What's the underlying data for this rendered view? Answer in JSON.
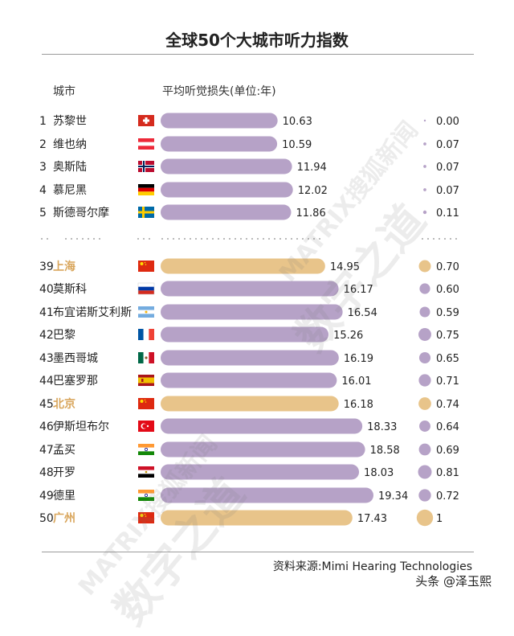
{
  "title": "全球50个大城市听力指数",
  "headers": {
    "city": "城市",
    "metric": "平均听觉损失(单位:年)"
  },
  "source": "资料来源:Mimi Hearing Technologies",
  "credit": "头条 @泽玉熙",
  "watermarks": [
    "MATRIX搜狐新闻",
    "数字之道",
    "MATRIX搜狐新闻",
    "数字之道"
  ],
  "colors": {
    "normal": "#b6a2c7",
    "highlight_city": "#e8c48a",
    "highlight_text": "#d9a65c"
  },
  "chart_data": {
    "type": "bar",
    "title": "全球50个大城市听力指数",
    "xlabel": "平均听觉损失(单位:年)",
    "rows": [
      {
        "rank": "1",
        "city": "苏黎世",
        "flag": "switzerland",
        "hearing_loss": 10.63,
        "index": 0.0,
        "index_label": "0.00",
        "highlight": false
      },
      {
        "rank": "2",
        "city": "维也纳",
        "flag": "austria",
        "hearing_loss": 10.59,
        "index": 0.07,
        "index_label": "0.07",
        "highlight": false
      },
      {
        "rank": "3",
        "city": "奥斯陆",
        "flag": "norway",
        "hearing_loss": 11.94,
        "index": 0.07,
        "index_label": "0.07",
        "highlight": false
      },
      {
        "rank": "4",
        "city": "慕尼黑",
        "flag": "germany",
        "hearing_loss": 12.02,
        "index": 0.07,
        "index_label": "0.07",
        "highlight": false
      },
      {
        "rank": "5",
        "city": "斯德哥尔摩",
        "flag": "sweden",
        "hearing_loss": 11.86,
        "index": 0.11,
        "index_label": "0.11",
        "highlight": false
      },
      {
        "rank": "39",
        "city": "上海",
        "flag": "china",
        "hearing_loss": 14.95,
        "index": 0.7,
        "index_label": "0.70",
        "highlight": true
      },
      {
        "rank": "40",
        "city": "莫斯科",
        "flag": "russia",
        "hearing_loss": 16.17,
        "index": 0.6,
        "index_label": "0.60",
        "highlight": false
      },
      {
        "rank": "41",
        "city": "布宜诺斯艾利斯",
        "flag": "argentina",
        "hearing_loss": 16.54,
        "index": 0.59,
        "index_label": "0.59",
        "highlight": false
      },
      {
        "rank": "42",
        "city": "巴黎",
        "flag": "france",
        "hearing_loss": 15.26,
        "index": 0.75,
        "index_label": "0.75",
        "highlight": false
      },
      {
        "rank": "43",
        "city": "墨西哥城",
        "flag": "mexico",
        "hearing_loss": 16.19,
        "index": 0.65,
        "index_label": "0.65",
        "highlight": false
      },
      {
        "rank": "44",
        "city": "巴塞罗那",
        "flag": "spain",
        "hearing_loss": 16.01,
        "index": 0.71,
        "index_label": "0.71",
        "highlight": false
      },
      {
        "rank": "45",
        "city": "北京",
        "flag": "china",
        "hearing_loss": 16.18,
        "index": 0.74,
        "index_label": "0.74",
        "highlight": true
      },
      {
        "rank": "46",
        "city": "伊斯坦布尔",
        "flag": "turkey",
        "hearing_loss": 18.33,
        "index": 0.64,
        "index_label": "0.64",
        "highlight": false
      },
      {
        "rank": "47",
        "city": "孟买",
        "flag": "india",
        "hearing_loss": 18.58,
        "index": 0.69,
        "index_label": "0.69",
        "highlight": false
      },
      {
        "rank": "48",
        "city": "开罗",
        "flag": "egypt",
        "hearing_loss": 18.03,
        "index": 0.81,
        "index_label": "0.81",
        "highlight": false
      },
      {
        "rank": "49",
        "city": "德里",
        "flag": "india",
        "hearing_loss": 19.34,
        "index": 0.72,
        "index_label": "0.72",
        "highlight": false
      },
      {
        "rank": "50",
        "city": "广州",
        "flag": "china",
        "hearing_loss": 17.43,
        "index": 1.0,
        "index_label": "1",
        "highlight": true
      }
    ]
  }
}
